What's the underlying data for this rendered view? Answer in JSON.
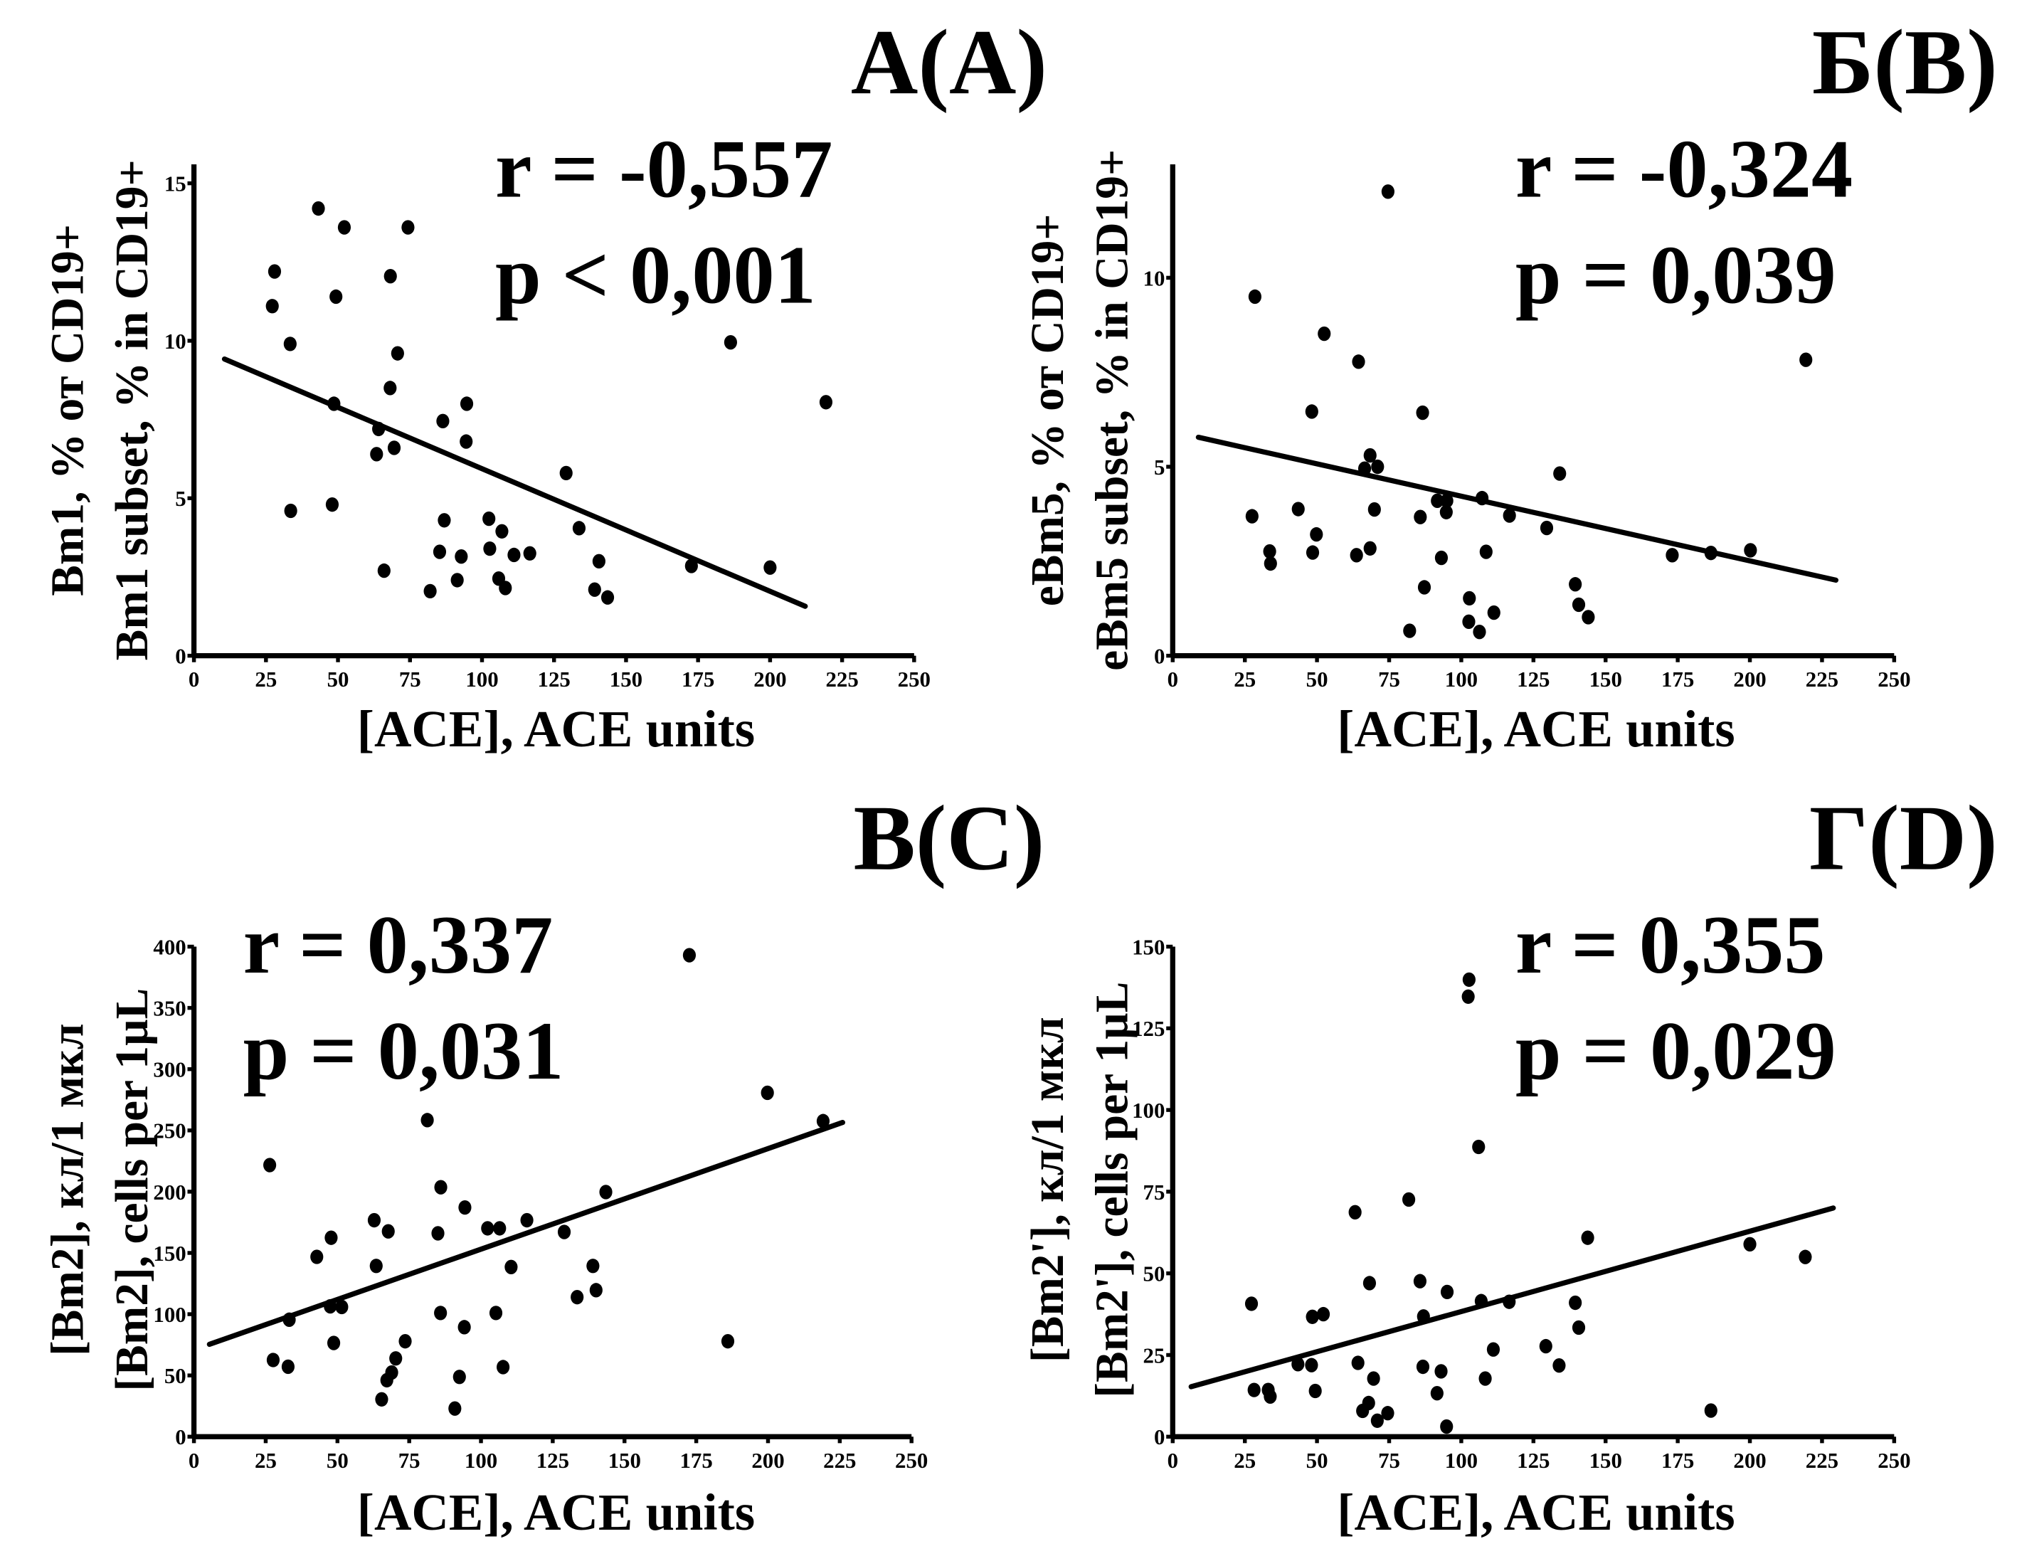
{
  "chart_data": [
    {
      "type": "scatter",
      "panel_label": "А(A)",
      "stat_r": "r = -0,557",
      "stat_p": "p <  0,001",
      "xlabel": "[ACE], ACE units",
      "ylabel_ru": "Bm1, % от CD19+",
      "ylabel_en": "Bm1 subset, % in CD19+",
      "xlim": [
        0,
        250
      ],
      "ylim": [
        0,
        15.6
      ],
      "xticks": [
        0,
        25,
        50,
        75,
        100,
        125,
        150,
        175,
        200,
        225,
        250
      ],
      "yticks": [
        0,
        5,
        10,
        15
      ],
      "grid": false,
      "points": [
        [
          43.2,
          14.2
        ],
        [
          52.2,
          13.6
        ],
        [
          74.3,
          13.6
        ],
        [
          28,
          12.2
        ],
        [
          68.2,
          12.05
        ],
        [
          27.2,
          11.1
        ],
        [
          49.3,
          11.4
        ],
        [
          33.4,
          9.9
        ],
        [
          70.7,
          9.6
        ],
        [
          68.1,
          8.5
        ],
        [
          48.6,
          8.0
        ],
        [
          94.7,
          8.0
        ],
        [
          86.4,
          7.45
        ],
        [
          64.1,
          7.2
        ],
        [
          94.5,
          6.8
        ],
        [
          63.4,
          6.4
        ],
        [
          69.5,
          6.6
        ],
        [
          129.2,
          5.8
        ],
        [
          33.6,
          4.6
        ],
        [
          48,
          4.8
        ],
        [
          86.9,
          4.3
        ],
        [
          102.4,
          4.35
        ],
        [
          106.9,
          3.95
        ],
        [
          133.7,
          4.05
        ],
        [
          85.3,
          3.3
        ],
        [
          102.7,
          3.4
        ],
        [
          92.8,
          3.15
        ],
        [
          111.1,
          3.2
        ],
        [
          116.6,
          3.25
        ],
        [
          66,
          2.7
        ],
        [
          140.6,
          3.0
        ],
        [
          91.4,
          2.4
        ],
        [
          105.8,
          2.45
        ],
        [
          108.1,
          2.15
        ],
        [
          82,
          2.05
        ],
        [
          139.1,
          2.1
        ],
        [
          143.6,
          1.85
        ],
        [
          172.7,
          2.85
        ],
        [
          200,
          2.8
        ],
        [
          186.3,
          9.95
        ],
        [
          219.4,
          8.05
        ]
      ],
      "fit_line": [
        [
          10.6,
          9.42
        ],
        [
          212.2,
          1.57
        ]
      ]
    },
    {
      "type": "scatter",
      "panel_label": "Б(B)",
      "stat_r": "r = -0,324",
      "stat_p": "p =  0,039",
      "xlabel": "[ACE], ACE units",
      "ylabel_ru": "eBm5, % от CD19+",
      "ylabel_en": "eBm5 subset, % in CD19+",
      "xlim": [
        0,
        250
      ],
      "ylim": [
        0,
        13
      ],
      "xticks": [
        0,
        25,
        50,
        75,
        100,
        125,
        150,
        175,
        200,
        225,
        250
      ],
      "yticks": [
        0,
        5,
        10
      ],
      "grid": false,
      "points": [
        [
          74.6,
          12.28
        ],
        [
          28.5,
          9.5
        ],
        [
          52.5,
          8.52
        ],
        [
          64.4,
          7.78
        ],
        [
          219.4,
          7.83
        ],
        [
          48.2,
          6.46
        ],
        [
          86.6,
          6.43
        ],
        [
          68.4,
          5.3
        ],
        [
          66.5,
          4.95
        ],
        [
          71,
          5.0
        ],
        [
          134.1,
          4.82
        ],
        [
          91.7,
          4.1
        ],
        [
          95,
          4.1
        ],
        [
          107.2,
          4.17
        ],
        [
          94.8,
          3.8
        ],
        [
          69.9,
          3.87
        ],
        [
          43.5,
          3.88
        ],
        [
          27.5,
          3.69
        ],
        [
          85.8,
          3.67
        ],
        [
          116.7,
          3.71
        ],
        [
          129.6,
          3.38
        ],
        [
          49.8,
          3.21
        ],
        [
          33.6,
          2.76
        ],
        [
          33.9,
          2.44
        ],
        [
          48.5,
          2.73
        ],
        [
          63.7,
          2.66
        ],
        [
          68.4,
          2.84
        ],
        [
          108.6,
          2.75
        ],
        [
          93.1,
          2.59
        ],
        [
          173.1,
          2.66
        ],
        [
          186.5,
          2.72
        ],
        [
          200.2,
          2.79
        ],
        [
          87.2,
          1.81
        ],
        [
          139.5,
          1.89
        ],
        [
          102.8,
          1.52
        ],
        [
          140.7,
          1.35
        ],
        [
          111.3,
          1.14
        ],
        [
          144,
          1.02
        ],
        [
          102.6,
          0.9
        ],
        [
          82.1,
          0.66
        ],
        [
          106.3,
          0.63
        ]
      ],
      "fit_line": [
        [
          8.9,
          5.78
        ],
        [
          229.8,
          2.0
        ]
      ]
    },
    {
      "type": "scatter",
      "panel_label": "В(C)",
      "stat_r": "r =  0,337",
      "stat_p": "p =  0,031",
      "xlabel": "[ACE], ACE units",
      "ylabel_ru": "[Bm2], кл/1 мкл",
      "ylabel_en": "[Bm2], cells per 1µL",
      "xlim": [
        0,
        250
      ],
      "ylim": [
        0,
        400
      ],
      "xticks": [
        0,
        25,
        50,
        75,
        100,
        125,
        150,
        175,
        200,
        225,
        250
      ],
      "yticks": [
        0,
        50,
        100,
        150,
        200,
        250,
        300,
        350,
        400
      ],
      "grid": false,
      "points": [
        [
          172.6,
          393
        ],
        [
          199.8,
          280.7
        ],
        [
          81.3,
          258.4
        ],
        [
          219.2,
          257.6
        ],
        [
          26.4,
          221.7
        ],
        [
          86,
          203.6
        ],
        [
          143.5,
          199.7
        ],
        [
          94.4,
          187.1
        ],
        [
          62.8,
          176.7
        ],
        [
          116,
          176.7
        ],
        [
          67.7,
          167.6
        ],
        [
          85,
          166
        ],
        [
          102.3,
          170.1
        ],
        [
          106.5,
          170.1
        ],
        [
          129,
          167.1
        ],
        [
          47.8,
          162.4
        ],
        [
          42.8,
          146.8
        ],
        [
          63.5,
          139.4
        ],
        [
          110.5,
          138.5
        ],
        [
          139,
          139.4
        ],
        [
          140.1,
          119.6
        ],
        [
          133.5,
          113.9
        ],
        [
          47.5,
          106.4
        ],
        [
          51.5,
          105.9
        ],
        [
          33.2,
          95.5
        ],
        [
          85.9,
          101
        ],
        [
          105.2,
          101
        ],
        [
          94.2,
          89.4
        ],
        [
          73.6,
          77.9
        ],
        [
          48.7,
          76.5
        ],
        [
          186,
          77.9
        ],
        [
          27.6,
          62.6
        ],
        [
          32.8,
          57.1
        ],
        [
          70.3,
          63.9
        ],
        [
          68.9,
          52.4
        ],
        [
          67.2,
          46.1
        ],
        [
          92.5,
          48.8
        ],
        [
          107.7,
          56.8
        ],
        [
          65.4,
          30.5
        ],
        [
          90.9,
          23
        ]
      ],
      "fit_line": [
        [
          5.4,
          75.4
        ],
        [
          226,
          256.5
        ]
      ]
    },
    {
      "type": "scatter",
      "panel_label": "Г(D)",
      "stat_r": "r =  0,355",
      "stat_p": "p =  0,029",
      "xlabel": "[ACE], ACE units",
      "ylabel_ru": "[Bm2'], кл/1 мкл",
      "ylabel_en": "[Bm2'], cells per 1µL",
      "xlim": [
        0,
        250
      ],
      "ylim": [
        0,
        150
      ],
      "xticks": [
        0,
        25,
        50,
        75,
        100,
        125,
        150,
        175,
        200,
        225,
        250
      ],
      "yticks": [
        0,
        25,
        50,
        75,
        100,
        125,
        150
      ],
      "grid": false,
      "points": [
        [
          102.7,
          139.9
        ],
        [
          102.4,
          134.7
        ],
        [
          106,
          88.7
        ],
        [
          81.8,
          72.6
        ],
        [
          63.2,
          68.7
        ],
        [
          143.8,
          60.9
        ],
        [
          200,
          58.9
        ],
        [
          219.2,
          55
        ],
        [
          68.2,
          47
        ],
        [
          85.7,
          47.6
        ],
        [
          95.1,
          44.3
        ],
        [
          106.9,
          41.5
        ],
        [
          116.6,
          41.3
        ],
        [
          139.5,
          41
        ],
        [
          27.3,
          40.7
        ],
        [
          48.4,
          36.7
        ],
        [
          52.2,
          37.5
        ],
        [
          86.9,
          36.8
        ],
        [
          140.7,
          33.4
        ],
        [
          111.1,
          26.7
        ],
        [
          129.3,
          27.7
        ],
        [
          43.4,
          22.2
        ],
        [
          48.1,
          21.9
        ],
        [
          64.2,
          22.6
        ],
        [
          86.7,
          21.4
        ],
        [
          93,
          20
        ],
        [
          133.9,
          21.8
        ],
        [
          69.6,
          17.8
        ],
        [
          108.3,
          17.8
        ],
        [
          28.2,
          14.3
        ],
        [
          33.1,
          14.3
        ],
        [
          33.8,
          12.3
        ],
        [
          49.4,
          14
        ],
        [
          91.6,
          13.3
        ],
        [
          67.9,
          10.3
        ],
        [
          65.8,
          7.9
        ],
        [
          74.5,
          7.2
        ],
        [
          70.9,
          4.9
        ],
        [
          94.9,
          3.1
        ],
        [
          186.5,
          8
        ]
      ],
      "fit_line": [
        [
          6.4,
          15.3
        ],
        [
          228.9,
          70
        ]
      ]
    }
  ]
}
